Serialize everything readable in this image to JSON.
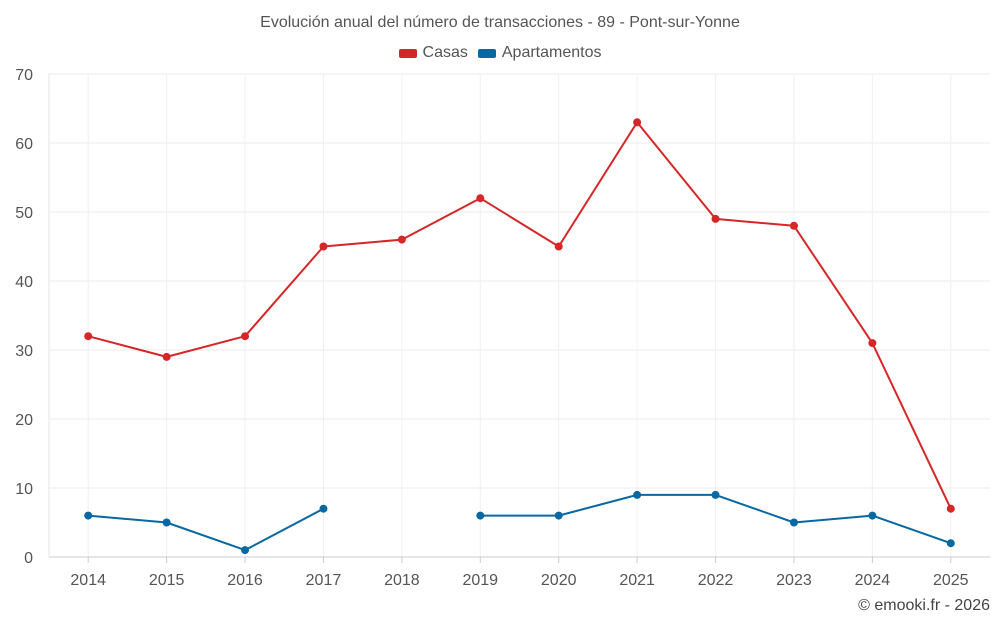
{
  "chart_data": {
    "type": "line",
    "title": "Evolución anual del número de transacciones - 89 - Pont-sur-Yonne",
    "xlabel": "",
    "ylabel": "",
    "categories": [
      "2014",
      "2015",
      "2016",
      "2017",
      "2018",
      "2019",
      "2020",
      "2021",
      "2022",
      "2023",
      "2024",
      "2025"
    ],
    "ylim": [
      0,
      70
    ],
    "yticks": [
      "0",
      "10",
      "20",
      "30",
      "40",
      "50",
      "60",
      "70"
    ],
    "grid": true,
    "legend_position": "top-center",
    "series": [
      {
        "name": "Casas",
        "color": "#d62728",
        "values": [
          32,
          29,
          32,
          45,
          46,
          52,
          45,
          63,
          49,
          48,
          31,
          7
        ]
      },
      {
        "name": "Apartamentos",
        "color": "#0868a1",
        "values": [
          6,
          5,
          1,
          7,
          null,
          6,
          6,
          9,
          9,
          5,
          6,
          2
        ]
      }
    ]
  },
  "credit": "© emooki.fr - 2026"
}
